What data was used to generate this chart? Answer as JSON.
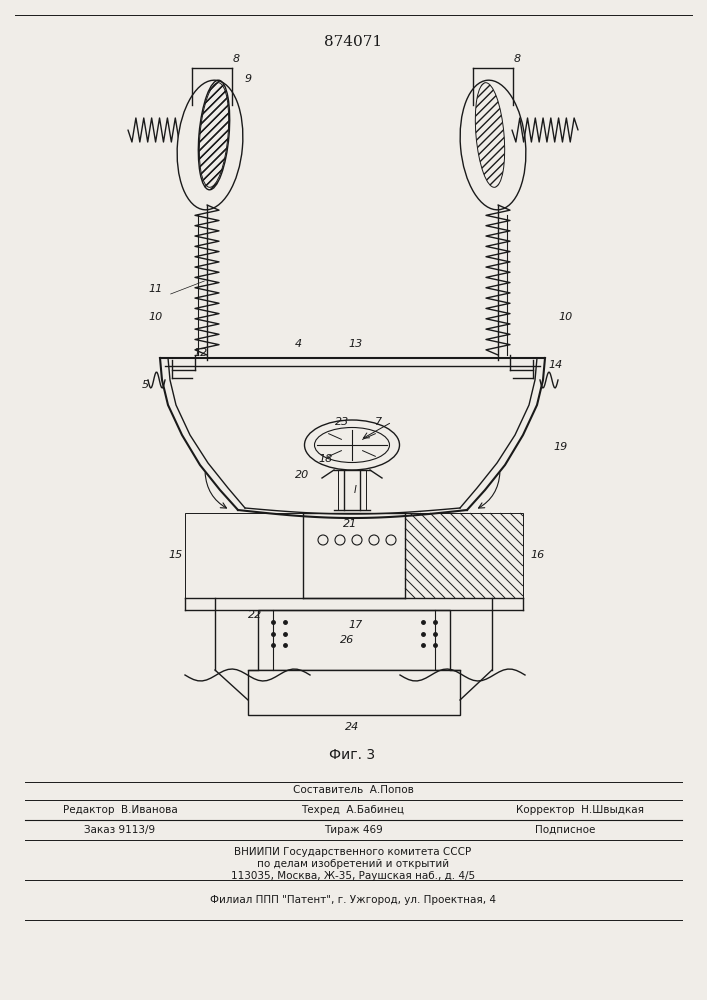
{
  "title": "874071",
  "fig_label": "Фиг. 3",
  "footer_line1": "Составитель  А.Попов",
  "footer_line2_left": "Редактор  В.Иванова",
  "footer_line2_mid": "Техред  А.Бабинец",
  "footer_line2_right": "Корректор  Н.Швыдкая",
  "footer_line3_left": "Заказ 9113/9",
  "footer_line3_mid": "Тираж 469",
  "footer_line3_right": "Подписное",
  "footer_line4": "ВНИИПИ Государственного комитета СССР",
  "footer_line5": "по делам изобретений и открытий",
  "footer_line6": "113035, Москва, Ж-35, Раушская наб., д. 4/5",
  "footer_line7": "Филиал ППП \"Патент\", г. Ужгород, ул. Проектная, 4",
  "bg_color": "#f0ede8",
  "line_color": "#1a1a1a"
}
